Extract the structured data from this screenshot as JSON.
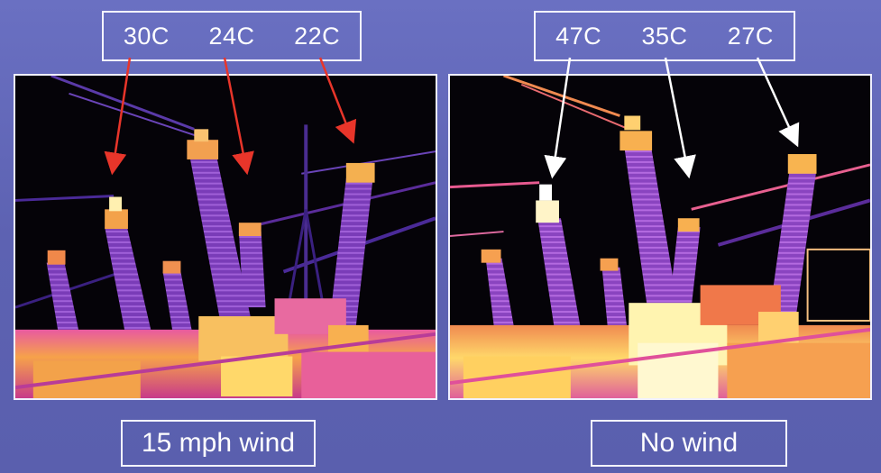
{
  "left": {
    "temps": [
      "30C",
      "24C",
      "22C"
    ],
    "caption": "15 mph wind",
    "arrow_color": "#e8352a"
  },
  "right": {
    "temps": [
      "47C",
      "35C",
      "27C"
    ],
    "caption": "No wind",
    "arrow_color": "#ffffff"
  },
  "colors": {
    "background": "#6468b8",
    "border": "#f4f4ff",
    "thermal_cold": "#3a1a7a",
    "thermal_mid": "#d23aa0",
    "thermal_hot": "#ffd84a"
  }
}
